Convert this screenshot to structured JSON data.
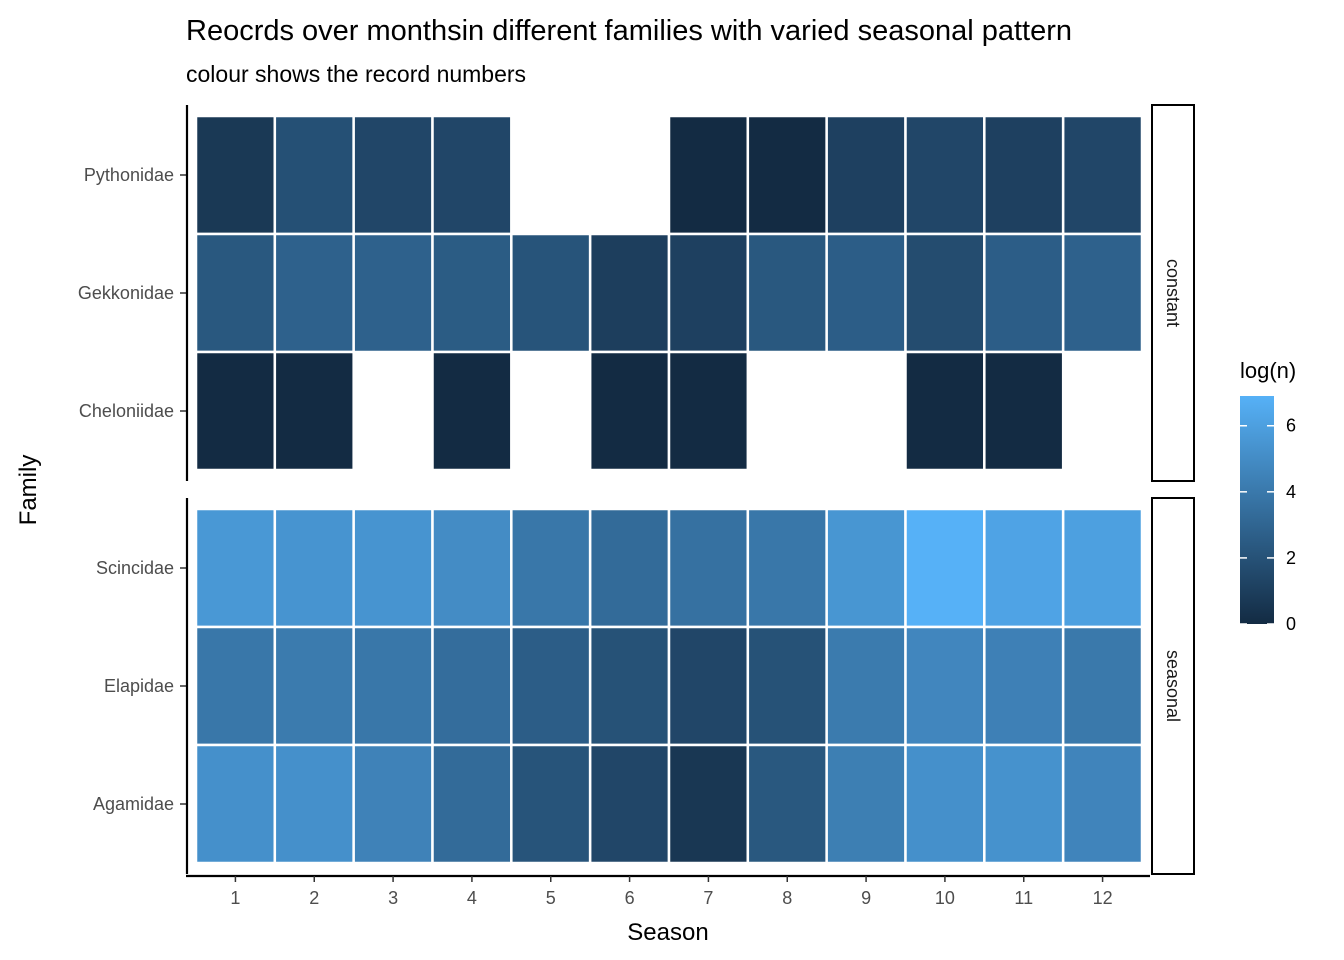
{
  "chart_data": {
    "type": "heatmap",
    "title": "Reocrds over monthsin different families with varied seasonal pattern",
    "subtitle": "colour shows the record numbers",
    "xlabel": "Season",
    "ylabel": "Family",
    "x_categories": [
      "1",
      "2",
      "3",
      "4",
      "5",
      "6",
      "7",
      "8",
      "9",
      "10",
      "11",
      "12"
    ],
    "legend": {
      "title": "log(n)",
      "placement": "right",
      "ticks": [
        0,
        2,
        4,
        6
      ],
      "min": 0,
      "max": 6.9,
      "low_color": "#132B43",
      "high_color": "#56B1F7"
    },
    "panels": [
      {
        "strip": "constant",
        "families": [
          "Pythonidae",
          "Gekkonidae",
          "Cheloniidae"
        ],
        "values": [
          [
            0.7,
            1.9,
            1.4,
            1.4,
            null,
            null,
            0.0,
            0.0,
            1.1,
            1.4,
            1.1,
            1.4
          ],
          [
            2.3,
            2.8,
            2.8,
            2.5,
            2.1,
            1.0,
            1.1,
            2.3,
            2.6,
            1.7,
            2.6,
            2.8
          ],
          [
            0.0,
            0.0,
            null,
            0.0,
            null,
            0.0,
            0.0,
            null,
            null,
            0.0,
            0.0,
            null
          ]
        ]
      },
      {
        "strip": "seasonal",
        "families": [
          "Scincidae",
          "Elapidae",
          "Agamidae"
        ],
        "values": [
          [
            5.6,
            5.4,
            5.4,
            5.0,
            3.9,
            3.3,
            3.6,
            3.9,
            5.5,
            6.9,
            6.2,
            6.0
          ],
          [
            3.9,
            4.1,
            3.9,
            3.4,
            2.6,
            2.0,
            1.4,
            2.0,
            4.1,
            4.7,
            4.4,
            4.0
          ],
          [
            5.2,
            5.2,
            4.5,
            3.3,
            2.1,
            1.4,
            0.6,
            2.3,
            4.3,
            5.2,
            5.3,
            4.6
          ]
        ]
      }
    ]
  }
}
